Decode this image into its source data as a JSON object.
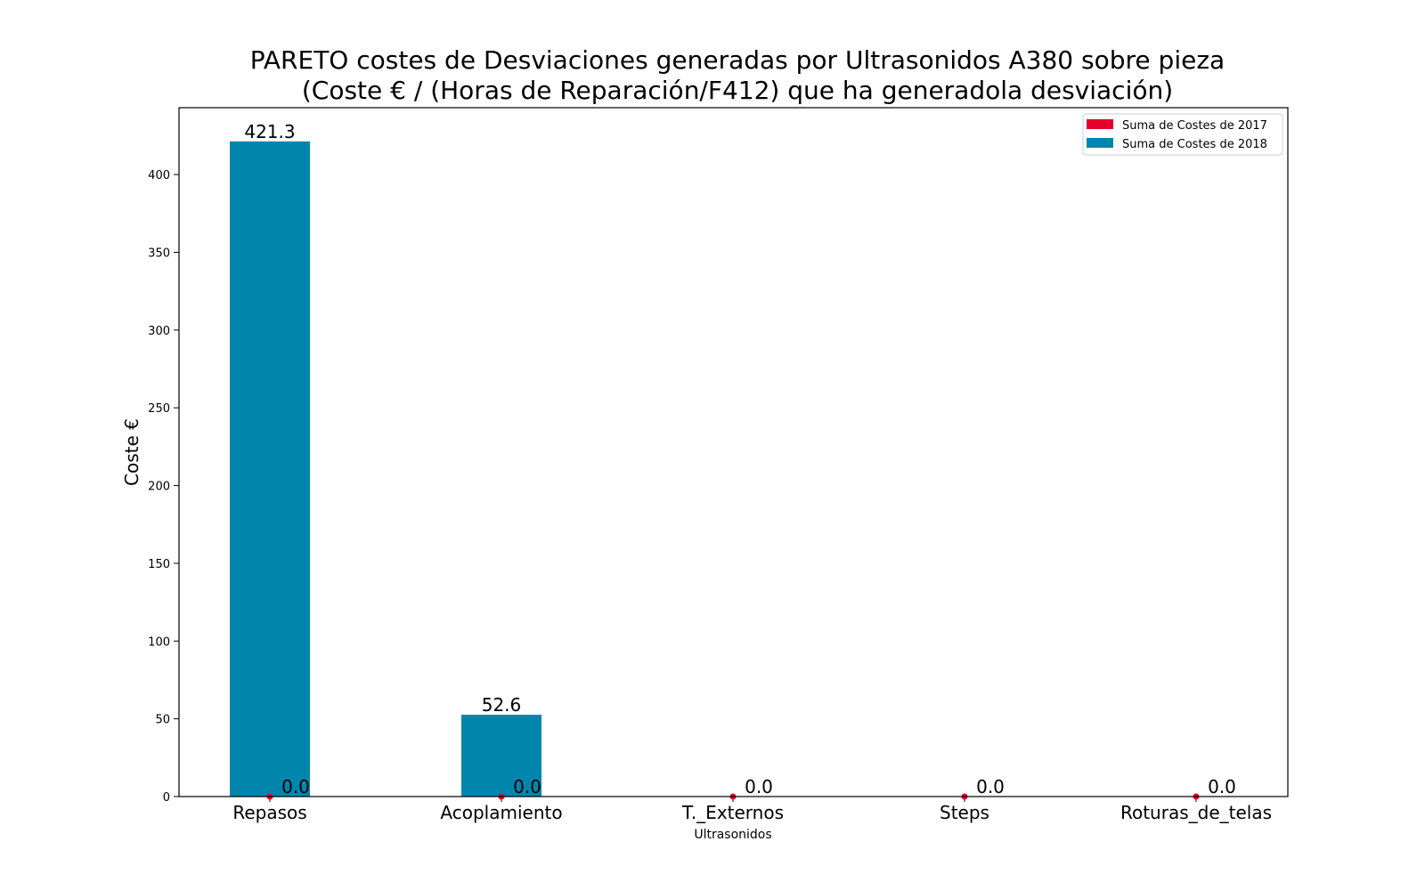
{
  "chart_data": {
    "type": "bar",
    "title_line1": "PARETO costes de Desviaciones  generadas  por Ultrasonidos A380 sobre pieza",
    "title_line2": "(Coste € / (Horas de Reparación/F412) que ha generadola desviación)",
    "xlabel": "Ultrasonidos",
    "ylabel": "Coste €",
    "ylim": [
      0,
      443
    ],
    "yticks": [
      0,
      50,
      100,
      150,
      200,
      250,
      300,
      350,
      400
    ],
    "grid": false,
    "legend_position": "top-right",
    "categories": [
      "Repasos",
      "Acoplamiento",
      "T._Externos",
      "Steps",
      "Roturas_de_telas"
    ],
    "series": [
      {
        "name": "Suma de Costes de 2017",
        "color": "#e4002b",
        "values": [
          0,
          0,
          0,
          0,
          0
        ],
        "labels": [
          "0.0",
          "0.0",
          "0.0",
          "0.0",
          "0.0"
        ]
      },
      {
        "name": "Suma de Costes de 2018",
        "color": "#0086ad",
        "values": [
          421.3,
          52.6,
          0,
          0,
          0
        ],
        "labels": [
          "421.3",
          "52.6",
          "",
          "",
          ""
        ]
      }
    ]
  }
}
